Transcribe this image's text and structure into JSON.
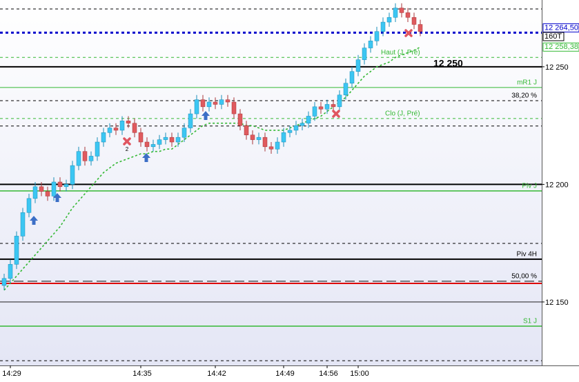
{
  "chart_data": {
    "type": "candlestick",
    "bar_type_label": "160T",
    "categories": [
      null,
      "14:29",
      null,
      null,
      null,
      null,
      null,
      null,
      null,
      null,
      null,
      null,
      null,
      null,
      null,
      null,
      null,
      null,
      null,
      null,
      null,
      null,
      "14:35",
      null,
      null,
      null,
      null,
      null,
      null,
      null,
      null,
      null,
      null,
      null,
      "14:42",
      null,
      null,
      null,
      null,
      null,
      null,
      null,
      null,
      null,
      null,
      "14:49",
      null,
      null,
      null,
      null,
      null,
      null,
      "14:56",
      null,
      null,
      null,
      null,
      "15:00",
      null,
      null,
      null,
      null,
      null,
      null,
      null,
      null,
      null,
      null
    ],
    "open": [
      12157,
      12160,
      12166,
      12178,
      12188,
      12194,
      12199,
      12197,
      12195,
      12201,
      12199,
      12200,
      12208,
      12214,
      12210,
      12212,
      12218,
      12222,
      12224,
      12223,
      12227,
      12226,
      12222,
      12218,
      12216,
      12217,
      12219,
      12220,
      12218,
      12220,
      12224,
      12230,
      12236,
      12233,
      12235,
      12234,
      12236,
      12235,
      12230,
      12225,
      12221,
      12219,
      12220,
      12216,
      12215,
      12218,
      12222,
      12223,
      12225,
      12226,
      12229,
      12233,
      12232,
      12234,
      12233,
      12238,
      12243,
      12248,
      12253,
      12258,
      12261,
      12265,
      12269,
      12271,
      12275,
      12273,
      12271,
      12268
    ],
    "high": [
      12162,
      12168,
      12180,
      12190,
      12196,
      12201,
      12201,
      12199,
      12203,
      12203,
      12202,
      12210,
      12216,
      12216,
      12214,
      12220,
      12224,
      12226,
      12226,
      12229,
      12229,
      12228,
      12224,
      12220,
      12219,
      12221,
      12222,
      12222,
      12222,
      12226,
      12232,
      12238,
      12238,
      12237,
      12237,
      12238,
      12238,
      12237,
      12232,
      12227,
      12223,
      12222,
      12222,
      12218,
      12220,
      12224,
      12225,
      12227,
      12228,
      12231,
      12235,
      12235,
      12236,
      12236,
      12240,
      12245,
      12250,
      12255,
      12260,
      12263,
      12267,
      12271,
      12273,
      12277,
      12277,
      12275,
      12273,
      12270
    ],
    "low": [
      12155,
      12158,
      12164,
      12176,
      12186,
      12192,
      12195,
      12193,
      12193,
      12197,
      12197,
      12198,
      12206,
      12208,
      12208,
      12210,
      12216,
      12220,
      12221,
      12221,
      12224,
      12220,
      12216,
      12214,
      12214,
      12215,
      12217,
      12216,
      12216,
      12218,
      12222,
      12228,
      12231,
      12231,
      12232,
      12232,
      12233,
      12228,
      12223,
      12219,
      12217,
      12217,
      12214,
      12213,
      12213,
      12216,
      12220,
      12221,
      12223,
      12224,
      12227,
      12230,
      12230,
      12231,
      12231,
      12236,
      12241,
      12246,
      12251,
      12256,
      12259,
      12263,
      12267,
      12269,
      12271,
      12269,
      12266,
      12263
    ],
    "close": [
      12160,
      12166,
      12178,
      12188,
      12194,
      12199,
      12197,
      12195,
      12201,
      12199,
      12200,
      12208,
      12214,
      12210,
      12212,
      12218,
      12222,
      12224,
      12223,
      12227,
      12226,
      12222,
      12218,
      12216,
      12217,
      12219,
      12220,
      12218,
      12220,
      12224,
      12230,
      12236,
      12233,
      12235,
      12234,
      12236,
      12235,
      12230,
      12225,
      12221,
      12219,
      12220,
      12216,
      12215,
      12218,
      12222,
      12223,
      12225,
      12226,
      12229,
      12233,
      12232,
      12234,
      12233,
      12238,
      12243,
      12248,
      12253,
      12258,
      12261,
      12265,
      12269,
      12271,
      12275,
      12273,
      12271,
      12268,
      12265
    ],
    "up_color": "#3cc6f2",
    "down_color": "#df5a5e",
    "ma": {
      "color": "#33b833",
      "end_label": "12 258,38",
      "values": [
        12155,
        12158,
        12161,
        12164,
        12167,
        12170,
        12173,
        12176,
        12179,
        12182,
        12186,
        12190,
        12193,
        12196,
        12199,
        12202,
        12205,
        12207,
        12209,
        12210,
        12211,
        12212,
        12213,
        12213,
        12214,
        12214,
        12215,
        12215,
        12217,
        12219,
        12221,
        12223,
        12225,
        12226,
        12226,
        12226,
        12226,
        12226,
        12226,
        12225,
        12225,
        12224,
        12223,
        12223,
        12223,
        12223,
        12224,
        12225,
        12226,
        12227,
        12228,
        12229,
        12231,
        12233,
        12235,
        12237,
        12240,
        12243,
        12246,
        12248,
        12250,
        12251,
        12252,
        12254,
        12255,
        12256,
        12257,
        12258.38
      ]
    },
    "levels": [
      {
        "value": 12274.6,
        "color": "#000000",
        "style": "dashed",
        "width": 1
      },
      {
        "value": 12264.5,
        "color": "#0000cc",
        "style": "dashed",
        "width": 3,
        "label": "12 264,50"
      },
      {
        "value": 12254,
        "color": "#33b833",
        "style": "dashed",
        "width": 1,
        "label": "Haut (J, Pré)"
      },
      {
        "value": 12250,
        "color": "#000000",
        "style": "solid",
        "width": 2,
        "label": "12 250"
      },
      {
        "value": 12241.2,
        "color": "#33b833",
        "style": "solid",
        "width": 1,
        "label": "mR1 J"
      },
      {
        "value": 12235.6,
        "color": "#000000",
        "style": "dashed",
        "width": 1,
        "label": "38,20 %"
      },
      {
        "value": 12228,
        "color": "#33b833",
        "style": "dashed",
        "width": 1,
        "label": "Clo (J, Pré)"
      },
      {
        "value": 12224.8,
        "color": "#000000",
        "style": "dashed",
        "width": 1
      },
      {
        "value": 12200,
        "color": "#000000",
        "style": "solid",
        "width": 2
      },
      {
        "value": 12197.2,
        "color": "#33b833",
        "style": "solid",
        "width": 1.5,
        "label": "Piv J"
      },
      {
        "value": 12174.9,
        "color": "#000000",
        "style": "dashed",
        "width": 1
      },
      {
        "value": 12168.2,
        "color": "#000000",
        "style": "solid",
        "width": 2,
        "label": "Piv 4H"
      },
      {
        "value": 12158.8,
        "color": "#000000",
        "style": "long-dashed",
        "width": 1,
        "label": "50,00 %"
      },
      {
        "value": 12157.9,
        "color": "#dd0000",
        "style": "solid",
        "width": 2
      },
      {
        "value": 12139.7,
        "color": "#33b833",
        "style": "solid",
        "width": 1.5,
        "label": "S1 J"
      },
      {
        "value": 12125,
        "color": "#000000",
        "style": "dashed",
        "width": 1
      }
    ],
    "annotations": [
      {
        "text": "2"
      }
    ],
    "ylim": [
      12123,
      12278.4
    ],
    "yticks": [
      {
        "value": 12150,
        "label": "12 150"
      },
      {
        "value": 12200,
        "label": "12 200"
      },
      {
        "value": 12250,
        "label": "12 250"
      }
    ],
    "grid": true
  }
}
